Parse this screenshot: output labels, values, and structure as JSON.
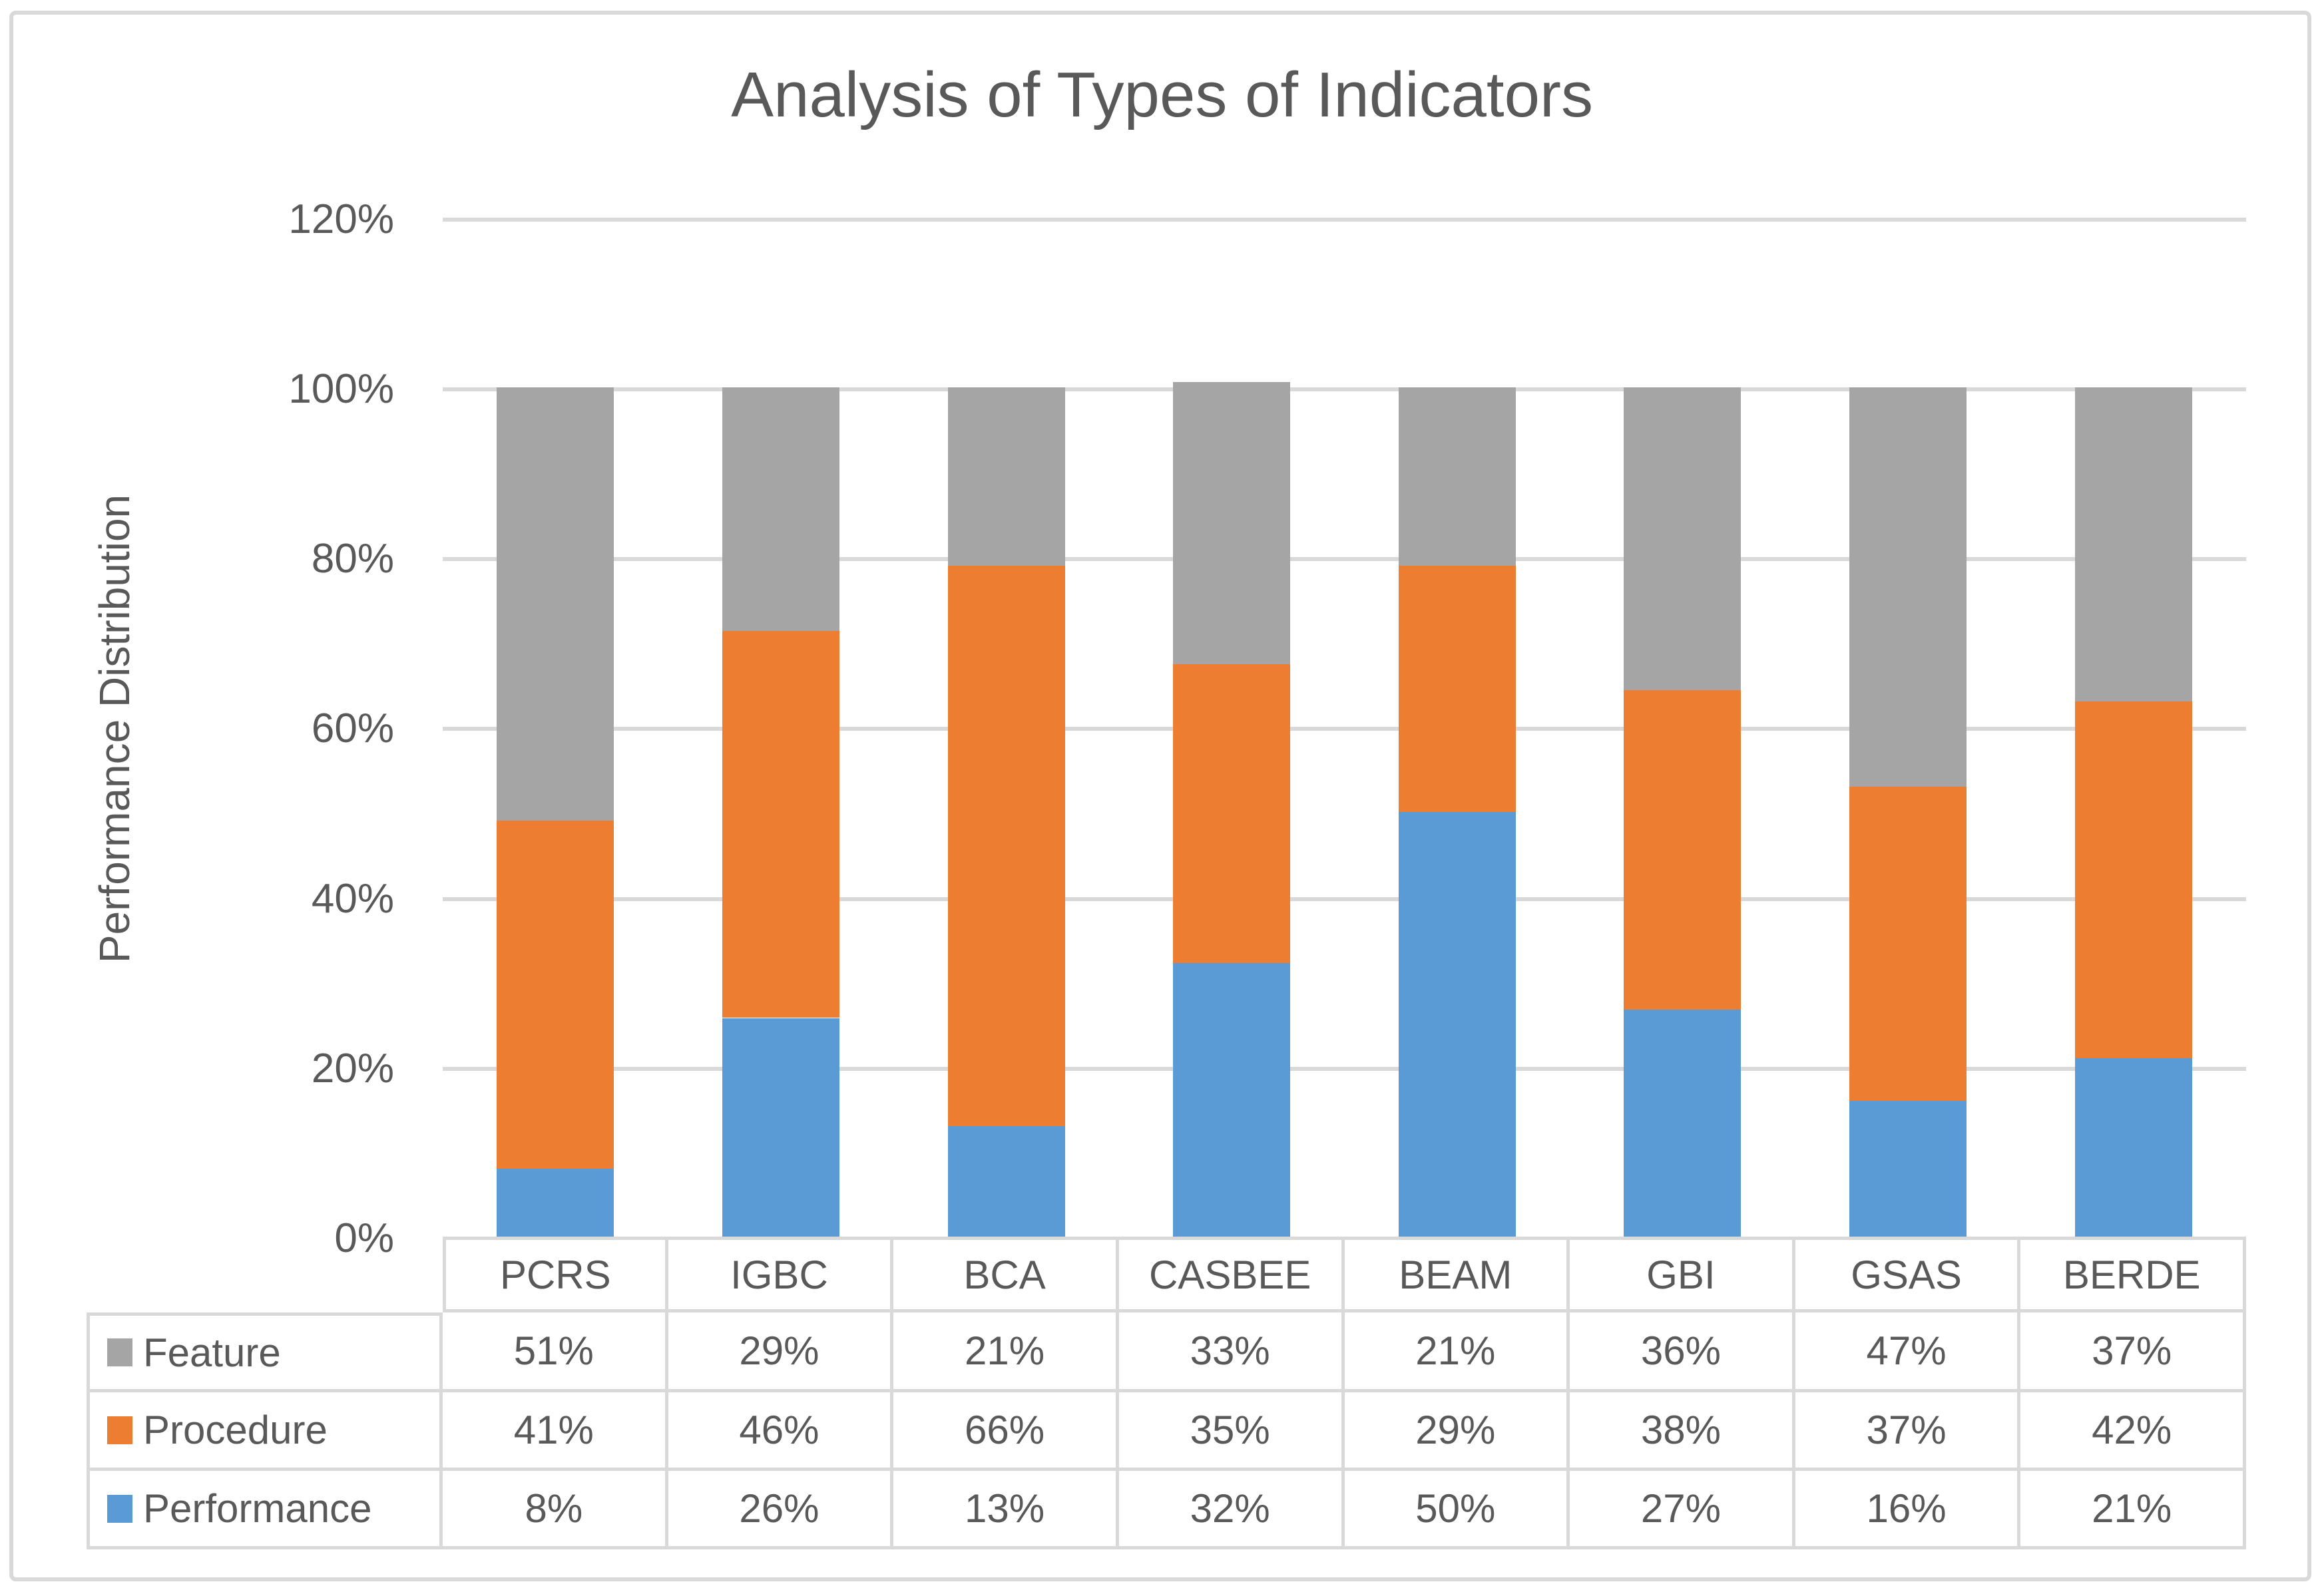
{
  "title": "Analysis of Types of Indicators",
  "colors": {
    "text": "#595959",
    "gridline": "#D9D9D9",
    "table_border": "#D9D9D9",
    "background": "#FFFFFF",
    "series_feature": "#A5A5A5",
    "series_procedure": "#ED7D31",
    "series_performance": "#5B9BD5"
  },
  "chart_data": {
    "type": "bar",
    "stacked": true,
    "title": "Analysis of Types of Indicators",
    "xlabel": "",
    "ylabel": "Performance Distribution",
    "categories": [
      "PCRS",
      "IGBC",
      "BCA",
      "CASBEE",
      "BEAM",
      "GBI",
      "GSAS",
      "BERDE"
    ],
    "series": [
      {
        "name": "Feature",
        "color": "#A5A5A5",
        "values": [
          51,
          29,
          21,
          33,
          21,
          36,
          47,
          37
        ]
      },
      {
        "name": "Procedure",
        "color": "#ED7D31",
        "values": [
          41,
          46,
          66,
          35,
          29,
          38,
          37,
          42
        ]
      },
      {
        "name": "Performance",
        "color": "#5B9BD5",
        "values": [
          8,
          26,
          13,
          32,
          50,
          27,
          16,
          21
        ]
      }
    ],
    "stack_order_bottom_to_top": [
      "Performance",
      "Procedure",
      "Feature"
    ],
    "stack_totals_pct": [
      100,
      100,
      100,
      100.6,
      100,
      100,
      100,
      100
    ],
    "value_suffix": "%",
    "y_axis": {
      "min": 0,
      "max": 120,
      "step": 20,
      "tick_labels": [
        "0%",
        "20%",
        "40%",
        "60%",
        "80%",
        "100%",
        "120%"
      ]
    },
    "grid": true,
    "legend_position": "data-table-left",
    "data_table_shown": true
  }
}
